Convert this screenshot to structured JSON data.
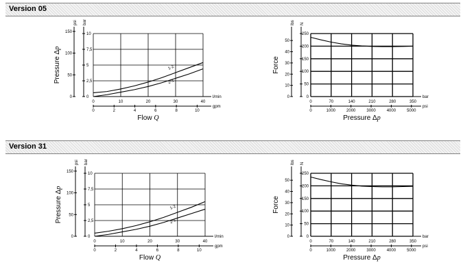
{
  "sections": [
    {
      "title": "Version 05",
      "pressure_chart": {
        "type": "line",
        "xlabel": "Flow",
        "xlabel_var": "Q",
        "ylabel": "Pressure Δ",
        "ylabel_var": "p",
        "x_primary": {
          "unit": "l/min",
          "ticks": [
            "0",
            "10",
            "20",
            "30",
            "40"
          ],
          "range": [
            0,
            40
          ]
        },
        "x_secondary": {
          "unit": "gpm",
          "ticks": [
            "0",
            "2",
            "4",
            "6",
            "8",
            "10"
          ],
          "values": [
            0,
            2,
            4,
            6,
            8,
            10
          ]
        },
        "y_primary": {
          "unit": "bar",
          "ticks": [
            "0",
            "2,5",
            "5",
            "7,5",
            "10"
          ],
          "range": [
            0,
            10
          ]
        },
        "y_secondary": {
          "unit": "psi",
          "ticks": [
            "0",
            "50",
            "100",
            "150"
          ],
          "values": [
            0,
            50,
            100,
            150
          ]
        },
        "series": [
          {
            "name": "1-2",
            "x": [
              0,
              5,
              10,
              15,
              20,
              25,
              30,
              35,
              40
            ],
            "y": [
              0.6,
              0.8,
              1.2,
              1.7,
              2.3,
              3.0,
              3.8,
              4.6,
              5.4
            ]
          },
          {
            "name": "2-1",
            "x": [
              0,
              5,
              10,
              15,
              20,
              25,
              30,
              35,
              40
            ],
            "y": [
              0.0,
              0.3,
              0.7,
              1.1,
              1.6,
              2.2,
              2.9,
              3.6,
              4.4
            ]
          }
        ]
      },
      "force_chart": {
        "type": "line",
        "xlabel": "Pressure Δ",
        "xlabel_var": "p",
        "ylabel": "Force",
        "x_primary": {
          "unit": "bar",
          "ticks": [
            "0",
            "70",
            "140",
            "210",
            "280",
            "350"
          ],
          "range": [
            0,
            350
          ]
        },
        "x_secondary": {
          "unit": "psi",
          "ticks": [
            "0",
            "1000",
            "2000",
            "3000",
            "4000",
            "5000"
          ],
          "values": [
            0,
            1000,
            2000,
            3000,
            4000,
            5000
          ]
        },
        "y_primary": {
          "unit": "N",
          "ticks": [
            "0",
            "50",
            "100",
            "150",
            "200",
            "250"
          ],
          "range": [
            0,
            250
          ]
        },
        "y_secondary": {
          "unit": "lbs",
          "ticks": [
            "0",
            "10",
            "20",
            "30",
            "40",
            "50"
          ],
          "values": [
            0,
            10,
            20,
            30,
            40,
            50
          ]
        },
        "series": [
          {
            "name": "force",
            "x": [
              0,
              35,
              70,
              105,
              140,
              175,
              210,
              245,
              280,
              315,
              350
            ],
            "y": [
              235,
              225,
              216,
              209,
              204,
              201,
              199,
              198,
              198,
              199,
              200
            ]
          }
        ]
      }
    },
    {
      "title": "Version 31",
      "pressure_chart": {
        "type": "line",
        "xlabel": "Flow",
        "xlabel_var": "Q",
        "ylabel": "Pressure Δ",
        "ylabel_var": "p",
        "x_primary": {
          "unit": "l/min",
          "ticks": [
            "0",
            "10",
            "20",
            "30",
            "40"
          ],
          "range": [
            0,
            40
          ]
        },
        "x_secondary": {
          "unit": "gpm",
          "ticks": [
            "0",
            "2",
            "4",
            "6",
            "8",
            "10"
          ],
          "values": [
            0,
            2,
            4,
            6,
            8,
            10
          ]
        },
        "y_primary": {
          "unit": "bar",
          "ticks": [
            "0",
            "2,5",
            "5",
            "7,5",
            "10"
          ],
          "range": [
            0,
            10
          ]
        },
        "y_secondary": {
          "unit": "psi",
          "ticks": [
            "0",
            "50",
            "100",
            "150"
          ],
          "values": [
            0,
            50,
            100,
            150
          ]
        },
        "series": [
          {
            "name": "1-2",
            "x": [
              0,
              5,
              10,
              15,
              20,
              25,
              30,
              35,
              40
            ],
            "y": [
              0.5,
              0.8,
              1.2,
              1.7,
              2.3,
              3.0,
              3.8,
              4.6,
              5.5
            ]
          },
          {
            "name": "2-1",
            "x": [
              0,
              5,
              10,
              15,
              20,
              25,
              30,
              35,
              40
            ],
            "y": [
              0.0,
              0.3,
              0.7,
              1.1,
              1.6,
              2.2,
              2.9,
              3.6,
              4.3
            ]
          }
        ]
      },
      "force_chart": {
        "type": "line",
        "xlabel": "Pressure Δ",
        "xlabel_var": "p",
        "ylabel": "Force",
        "x_primary": {
          "unit": "bar",
          "ticks": [
            "0",
            "70",
            "140",
            "210",
            "280",
            "350"
          ],
          "range": [
            0,
            350
          ]
        },
        "x_secondary": {
          "unit": "psi",
          "ticks": [
            "0",
            "1000",
            "2000",
            "3000",
            "4000",
            "5000"
          ],
          "values": [
            0,
            1000,
            2000,
            3000,
            4000,
            5000
          ]
        },
        "y_primary": {
          "unit": "N",
          "ticks": [
            "0",
            "50",
            "100",
            "150",
            "200",
            "250"
          ],
          "range": [
            0,
            250
          ]
        },
        "y_secondary": {
          "unit": "lbs",
          "ticks": [
            "0",
            "10",
            "20",
            "30",
            "40",
            "50"
          ],
          "values": [
            0,
            10,
            20,
            30,
            40,
            50
          ]
        },
        "series": [
          {
            "name": "force",
            "x": [
              0,
              35,
              70,
              105,
              140,
              175,
              210,
              245,
              280,
              315,
              350
            ],
            "y": [
              235,
              225,
              216,
              208,
              203,
              199,
              197,
              196,
              196,
              197,
              198
            ]
          }
        ]
      }
    }
  ]
}
